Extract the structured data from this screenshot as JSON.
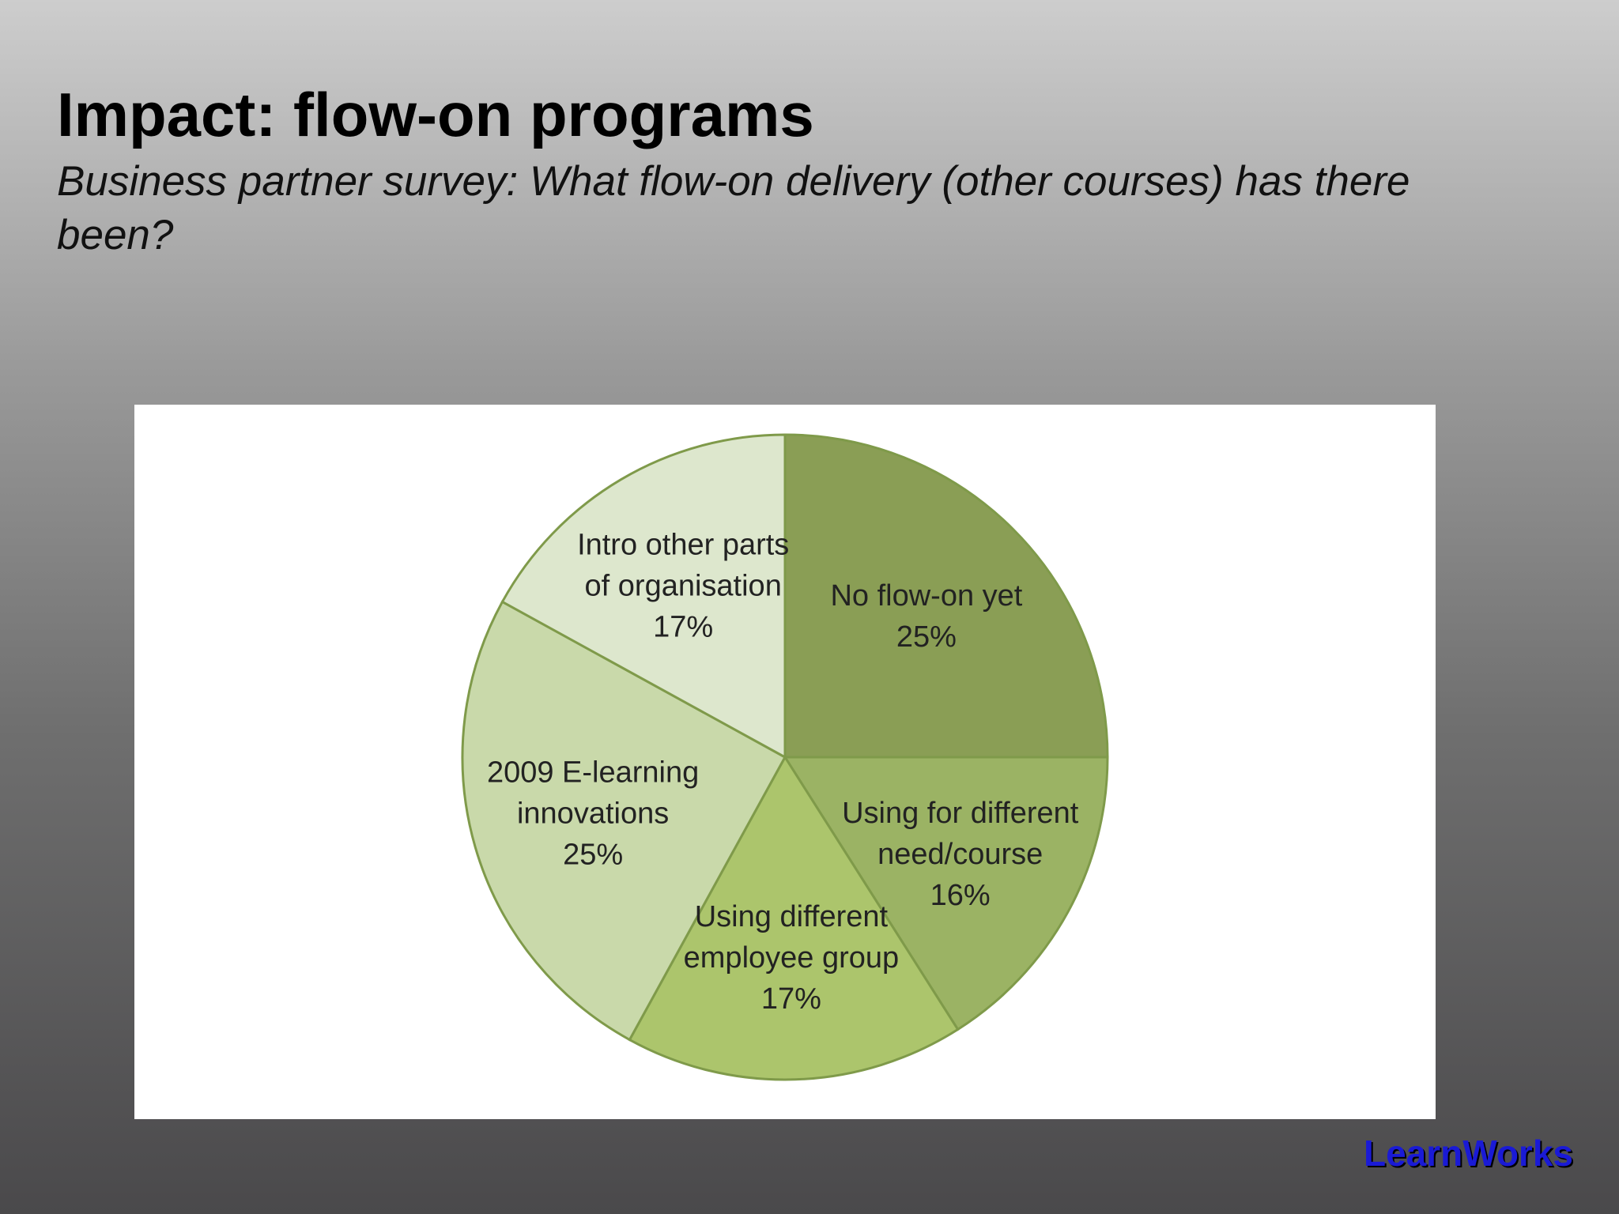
{
  "slide": {
    "title": "Impact: flow-on programs",
    "subtitle": "Business partner survey: What flow-on delivery (other courses) has there been?",
    "brand": "LearnWorks"
  },
  "chart_data": {
    "type": "pie",
    "title": "",
    "start_angle_deg": 0,
    "direction": "clockwise",
    "slices": [
      {
        "label": [
          "No flow-on yet"
        ],
        "pct_label": "25%",
        "value": 25,
        "color": "#8a9e55"
      },
      {
        "label": [
          "Using for different",
          "need/course"
        ],
        "pct_label": "16%",
        "value": 16,
        "color": "#9bb364"
      },
      {
        "label": [
          "Using different",
          "employee group"
        ],
        "pct_label": "17%",
        "value": 17,
        "color": "#acc56c"
      },
      {
        "label": [
          "2009 E-learning",
          "innovations"
        ],
        "pct_label": "25%",
        "value": 25,
        "color": "#c9d9aa"
      },
      {
        "label": [
          "Intro other parts",
          "of organisation"
        ],
        "pct_label": "17%",
        "value": 17,
        "color": "#dde7cd"
      }
    ],
    "edge_color": "#7f9a4a",
    "grid": false,
    "legend": "none"
  }
}
